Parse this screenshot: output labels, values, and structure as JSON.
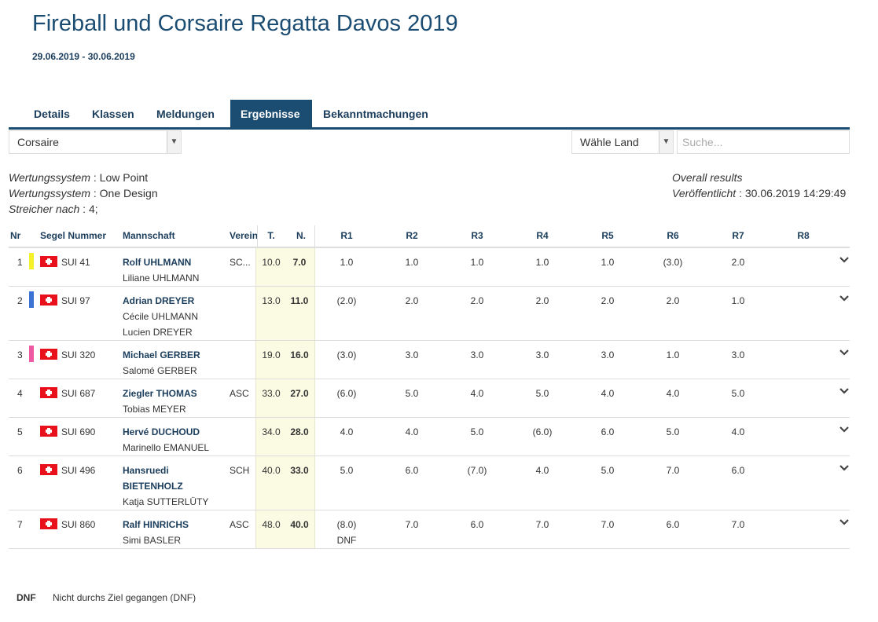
{
  "header": {
    "title": "Fireball und Corsaire Regatta Davos 2019",
    "dates": "29.06.2019 - 30.06.2019"
  },
  "tabs": [
    {
      "label": "Details"
    },
    {
      "label": "Klassen"
    },
    {
      "label": "Meldungen"
    },
    {
      "label": "Ergebnisse",
      "active": true
    },
    {
      "label": "Bekanntmachungen"
    }
  ],
  "filters": {
    "class_select": "Corsaire",
    "country_select": "Wähle Land",
    "search_placeholder": "Suche..."
  },
  "info": {
    "scoring_label": "Wertungssystem",
    "scoring_value": "Low Point",
    "scoring2_label": "Wertungssystem",
    "scoring2_value": "One Design",
    "discard_label": "Streicher nach",
    "discard_value": "4;",
    "overall": "Overall results",
    "published_label": "Veröffentlicht",
    "published_value": "30.06.2019 14:29:49"
  },
  "table": {
    "headers": {
      "nr": "Nr",
      "sail": "Segel Nummer",
      "crew": "Mannschaft",
      "club": "Verein",
      "total": "T.",
      "net": "N.",
      "races": [
        "R1",
        "R2",
        "R3",
        "R4",
        "R5",
        "R6",
        "R7",
        "R8"
      ]
    },
    "rows": [
      {
        "nr": "1",
        "color": "#f5f02a",
        "country": "SUI",
        "sail": "SUI 41",
        "skipper": [
          "Rolf UHLMANN"
        ],
        "crew": [
          "Liliane UHLMANN"
        ],
        "club": "SC...",
        "total": "10.0",
        "net": "7.0",
        "races": [
          "1.0",
          "1.0",
          "1.0",
          "1.0",
          "1.0",
          "(3.0)",
          "2.0",
          ""
        ],
        "note": ""
      },
      {
        "nr": "2",
        "color": "#3b73d4",
        "country": "SUI",
        "sail": "SUI 97",
        "skipper": [
          "Adrian DREYER"
        ],
        "crew": [
          "Cécile UHLMANN",
          "Lucien DREYER"
        ],
        "club": "",
        "total": "13.0",
        "net": "11.0",
        "races": [
          "(2.0)",
          "2.0",
          "2.0",
          "2.0",
          "2.0",
          "2.0",
          "1.0",
          ""
        ],
        "note": ""
      },
      {
        "nr": "3",
        "color": "#ee5aa2",
        "country": "SUI",
        "sail": "SUI 320",
        "skipper": [
          "Michael GERBER"
        ],
        "crew": [
          "Salomé GERBER"
        ],
        "club": "",
        "total": "19.0",
        "net": "16.0",
        "races": [
          "(3.0)",
          "3.0",
          "3.0",
          "3.0",
          "3.0",
          "1.0",
          "3.0",
          ""
        ],
        "note": ""
      },
      {
        "nr": "4",
        "color": "",
        "country": "SUI",
        "sail": "SUI 687",
        "skipper": [
          "Ziegler THOMAS"
        ],
        "crew": [
          "Tobias MEYER"
        ],
        "club": "ASC",
        "total": "33.0",
        "net": "27.0",
        "races": [
          "(6.0)",
          "5.0",
          "4.0",
          "5.0",
          "4.0",
          "4.0",
          "5.0",
          ""
        ],
        "note": ""
      },
      {
        "nr": "5",
        "color": "",
        "country": "SUI",
        "sail": "SUI 690",
        "skipper": [
          "Hervé DUCHOUD"
        ],
        "crew": [
          "Marinello EMANUEL"
        ],
        "club": "",
        "total": "34.0",
        "net": "28.0",
        "races": [
          "4.0",
          "4.0",
          "5.0",
          "(6.0)",
          "6.0",
          "5.0",
          "4.0",
          ""
        ],
        "note": ""
      },
      {
        "nr": "6",
        "color": "",
        "country": "SUI",
        "sail": "SUI 496",
        "skipper": [
          "Hansruedi",
          "BIETENHOLZ"
        ],
        "crew": [
          "Katja SUTTERLÜTY"
        ],
        "club": "SCH",
        "total": "40.0",
        "net": "33.0",
        "races": [
          "5.0",
          "6.0",
          "(7.0)",
          "4.0",
          "5.0",
          "7.0",
          "6.0",
          ""
        ],
        "note": ""
      },
      {
        "nr": "7",
        "color": "",
        "country": "SUI",
        "sail": "SUI 860",
        "skipper": [
          "Ralf HINRICHS"
        ],
        "crew": [
          "Simi BASLER"
        ],
        "club": "ASC",
        "total": "48.0",
        "net": "40.0",
        "races": [
          "(8.0)",
          "7.0",
          "6.0",
          "7.0",
          "7.0",
          "6.0",
          "7.0",
          ""
        ],
        "note": "DNF"
      }
    ]
  },
  "legend": {
    "code": "DNF",
    "text": "Nicht durchs Ziel gegangen (DNF)"
  }
}
